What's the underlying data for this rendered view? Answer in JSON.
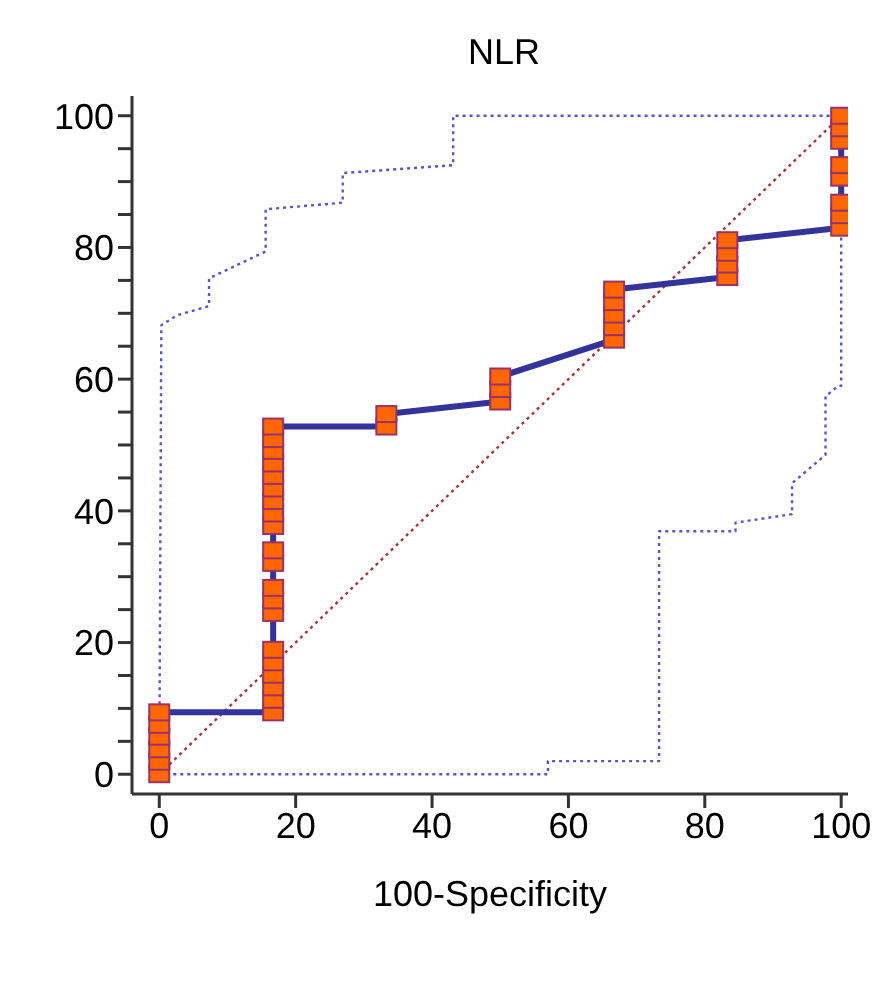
{
  "chart_data": {
    "type": "line",
    "title": "NLR",
    "xlabel": "100-Specificity",
    "xlim": [
      -4,
      101
    ],
    "ylim": [
      -3,
      103
    ],
    "xticks": [
      0,
      20,
      40,
      60,
      80,
      100
    ],
    "yticks": [
      0,
      {
        "value": 5,
        "label": null
      },
      20,
      {
        "value": 10,
        "label": null
      },
      {
        "value": 15,
        "label": null
      },
      {
        "value": 25,
        "label": null
      },
      {
        "value": 30,
        "label": null
      },
      {
        "value": 35,
        "label": null
      },
      40,
      {
        "value": 45,
        "label": null
      },
      {
        "value": 50,
        "label": null
      },
      {
        "value": 55,
        "label": null
      },
      60,
      {
        "value": 65,
        "label": null
      },
      {
        "value": 70,
        "label": null
      },
      {
        "value": 75,
        "label": null
      },
      80,
      {
        "value": 85,
        "label": null
      },
      {
        "value": 90,
        "label": null
      },
      {
        "value": 95,
        "label": null
      },
      100
    ],
    "grid": false,
    "series": [
      {
        "color": "#aa3333",
        "line_style": "dotted",
        "marker": "none",
        "x": [
          0,
          100
        ],
        "values": [
          0,
          100
        ]
      },
      {
        "color": "#5555cc",
        "line_style": "dotted",
        "marker": "none",
        "x": [
          0,
          0.3,
          2.6,
          7.3,
          7.3,
          15.6,
          15.6,
          26.9,
          26.9,
          43.1,
          43.1,
          100
        ],
        "values": [
          0,
          68.2,
          69.7,
          71.1,
          75.3,
          79.4,
          85.8,
          86.8,
          91.3,
          92.5,
          100,
          100
        ]
      },
      {
        "color": "#5555cc",
        "line_style": "dotted",
        "marker": "none",
        "x": [
          0,
          57,
          57,
          73.3,
          73.3,
          84.5,
          84.5,
          92.8,
          92.8,
          97.7,
          97.7,
          99.6,
          100,
          100
        ],
        "values": [
          0,
          0,
          2,
          2,
          36.9,
          36.9,
          38.2,
          39.5,
          44.2,
          48.5,
          57.4,
          59,
          59,
          82.8
        ]
      },
      {
        "color": "#333399",
        "line_style": "solid",
        "marker": "none",
        "x": [
          0,
          0,
          16.7,
          16.7,
          33.3,
          33.3,
          50,
          50,
          66.7,
          66.7,
          83.3,
          83.3,
          100,
          100
        ],
        "values": [
          0,
          9.4,
          9.4,
          52.8,
          52.8,
          54.7,
          56.6,
          60.4,
          66,
          73.6,
          75.5,
          81.1,
          83,
          100
        ]
      },
      {
        "type": "scatter",
        "color": "#ff6600",
        "marker": "square",
        "x": [
          0,
          0,
          0,
          0,
          0,
          0,
          16.7,
          16.7,
          16.7,
          16.7,
          16.7,
          16.7,
          16.7,
          16.7,
          16.7,
          16.7,
          16.7,
          16.7,
          16.7,
          16.7,
          16.7,
          16.7,
          16.7,
          16.7,
          16.7,
          16.7,
          33.3,
          33.3,
          50,
          50,
          50,
          66.7,
          66.7,
          66.7,
          66.7,
          66.7,
          83.3,
          83.3,
          83.3,
          83.3,
          100,
          100,
          100,
          100,
          100,
          100,
          100,
          100
        ],
        "values": [
          0,
          1.9,
          3.8,
          5.7,
          7.5,
          9.4,
          9.4,
          11.3,
          13.2,
          15.1,
          17,
          18.9,
          24.5,
          26.4,
          28.3,
          32.1,
          34,
          37.7,
          39.6,
          41.5,
          43.4,
          45.3,
          47.2,
          49.1,
          50.9,
          52.8,
          52.8,
          54.7,
          56.6,
          58.5,
          60.4,
          66,
          67.9,
          69.8,
          71.7,
          73.6,
          75.5,
          77.4,
          79.2,
          81.1,
          83,
          84.9,
          86.8,
          90.6,
          92.5,
          96.2,
          98.1,
          100
        ]
      }
    ]
  }
}
